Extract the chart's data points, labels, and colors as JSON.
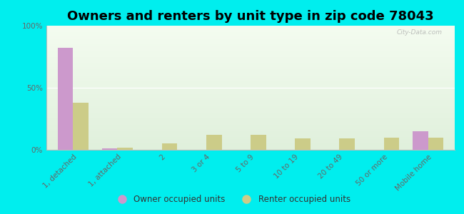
{
  "title": "Owners and renters by unit type in zip code 78043",
  "categories": [
    "1, detached",
    "1, attached",
    "2",
    "3 or 4",
    "5 to 9",
    "10 to 19",
    "20 to 49",
    "50 or more",
    "Mobile home"
  ],
  "owner_values": [
    82,
    1,
    0,
    0,
    0,
    0,
    0,
    0,
    15
  ],
  "renter_values": [
    38,
    2,
    5,
    12,
    12,
    9,
    9,
    10,
    10
  ],
  "owner_color": "#cc99cc",
  "renter_color": "#cccc88",
  "background_color": "#00eeee",
  "plot_bg_top": "#e0f0dc",
  "plot_bg_bottom": "#f4fcf0",
  "ylim": [
    0,
    100
  ],
  "yticks": [
    0,
    50,
    100
  ],
  "ytick_labels": [
    "0%",
    "50%",
    "100%"
  ],
  "watermark": "City-Data.com",
  "legend_owner": "Owner occupied units",
  "legend_renter": "Renter occupied units",
  "bar_width": 0.35,
  "title_fontsize": 13,
  "tick_fontsize": 7.5
}
